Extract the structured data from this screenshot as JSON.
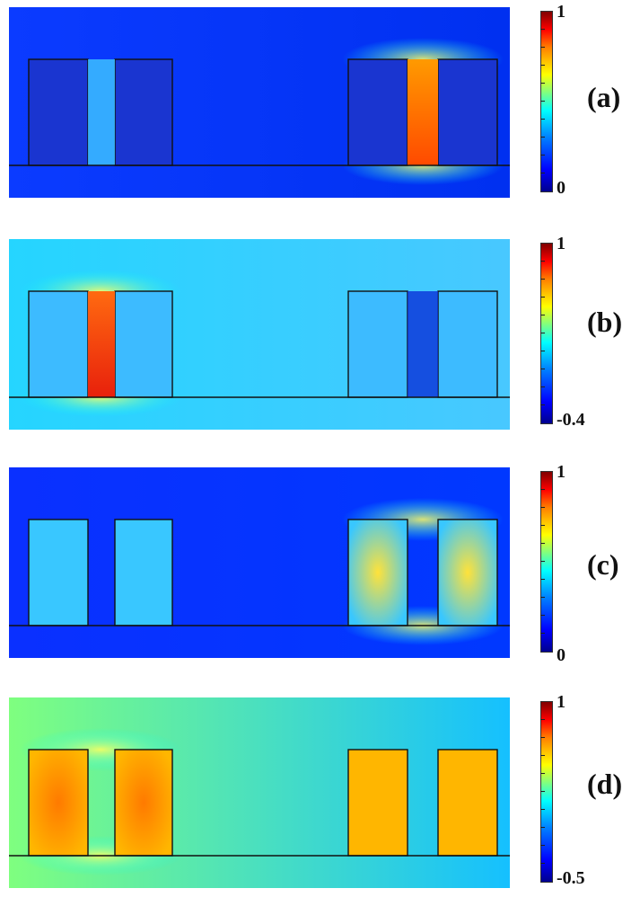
{
  "panels": [
    {
      "label": "(a)",
      "max": "1",
      "min": "0",
      "bg": [
        "#0b3bff",
        "#0030f0"
      ],
      "active": "right",
      "mode": "gap",
      "gap_color": [
        "#ff9a00",
        "#ff4a00"
      ],
      "block_color": [
        "#0a2aaa",
        "#1a35d0"
      ]
    },
    {
      "label": "(b)",
      "max": "1",
      "min": "-0.4",
      "bg": [
        "#25d5ff",
        "#48c8ff"
      ],
      "active": "left",
      "mode": "gap",
      "gap_color": [
        "#ff6a10",
        "#e8200c"
      ],
      "block_color": [
        "#2ad2ff",
        "#3dbbff"
      ]
    },
    {
      "label": "(c)",
      "max": "1",
      "min": "0",
      "bg": [
        "#0a30ff",
        "#0038ff"
      ],
      "active": "right",
      "mode": "block",
      "gap_color": [
        "#0b48ff",
        "#0b48ff"
      ],
      "block_color": [
        "#ffe23a",
        "#39c7ff"
      ]
    },
    {
      "label": "(d)",
      "max": "1",
      "min": "-0.5",
      "bg": [
        "#7fff7f",
        "#15c0ff"
      ],
      "active": "left",
      "mode": "block",
      "gap_color": [
        "#ffb400",
        "#ffb400"
      ],
      "block_color": [
        "#ff7a00",
        "#ffb600"
      ]
    }
  ]
}
